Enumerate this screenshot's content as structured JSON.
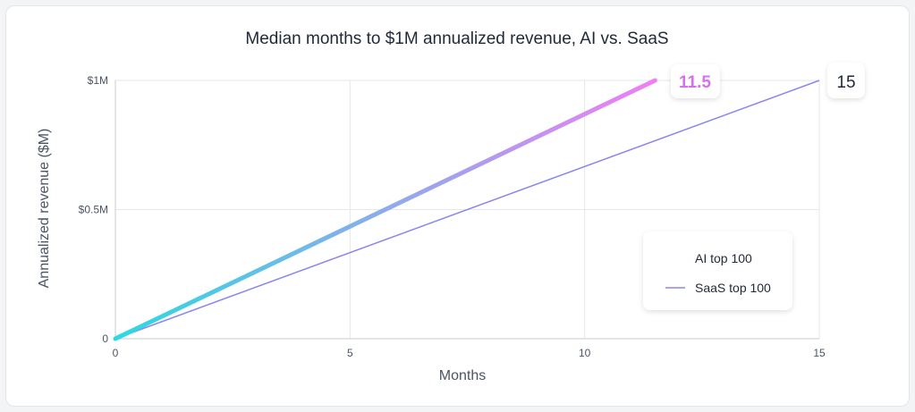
{
  "chart_data": {
    "type": "line",
    "title": "Median months to $1M annualized revenue, AI vs. SaaS",
    "xlabel": "Months",
    "ylabel": "Annualized revenue ($M)",
    "xlim": [
      0,
      15
    ],
    "ylim": [
      0,
      1
    ],
    "x_ticks": [
      0,
      5,
      10,
      15
    ],
    "x_tick_labels": [
      "0",
      "5",
      "10",
      "15"
    ],
    "y_ticks": [
      0,
      0.5,
      1
    ],
    "y_tick_labels": [
      "0",
      "$0.5M",
      "$1M"
    ],
    "grid": true,
    "legend_position": "bottom-right",
    "series": [
      {
        "name": "AI top 100",
        "x": [
          0,
          11.5
        ],
        "y": [
          0,
          1
        ],
        "end_label": "11.5",
        "color_start": "#2dd9e0",
        "color_end": "#ee7ff5",
        "line_style": "thick-gradient"
      },
      {
        "name": "SaaS top 100",
        "x": [
          0,
          15
        ],
        "y": [
          0,
          1
        ],
        "end_label": "15",
        "color": "#8b86f0",
        "line_style": "thin"
      }
    ]
  },
  "colors": {
    "grid": "#e5e7eb",
    "axis": "#c7cbd1",
    "text": "#1f2937",
    "tick_text": "#4b5563",
    "ai_label": "#d96ef0",
    "saas_label": "#1f2937"
  }
}
